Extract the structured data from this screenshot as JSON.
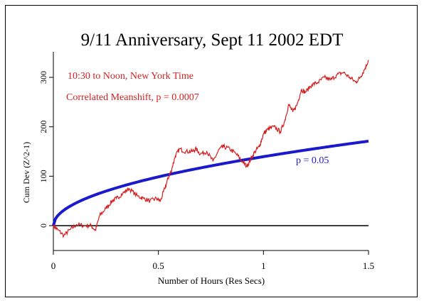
{
  "chart_data": {
    "type": "line",
    "title": "9/11 Anniversary, Sept 11 2002 EDT",
    "xlabel": "Number of Hours (Res Secs)",
    "ylabel": "Cum Dev (Z^2-1)",
    "xlim": [
      0,
      1.5
    ],
    "ylim": [
      -50,
      360
    ],
    "x_ticks": [
      {
        "value": 0,
        "label": "0"
      },
      {
        "value": 0.5,
        "label": "0.5"
      },
      {
        "value": 1,
        "label": "1"
      },
      {
        "value": 1.5,
        "label": "1.5"
      }
    ],
    "y_ticks": [
      {
        "value": 0,
        "label": "0"
      },
      {
        "value": 100,
        "label": "100"
      },
      {
        "value": 200,
        "label": "200"
      },
      {
        "value": 300,
        "label": "300"
      }
    ],
    "grid": false,
    "annotations": [
      {
        "text": "10:30 to Noon, New York Time",
        "color": "#d42020"
      },
      {
        "text": "Correlated Meanshift,  p = 0.0007",
        "color": "#d42020"
      }
    ],
    "reference_line": {
      "label": "p = 0.05",
      "color": "#1a1acc",
      "formula": "1.6449*sqrt(2*x*3600)",
      "x_end": 1.5
    },
    "zero_line": {
      "y": 0,
      "color": "#000000"
    },
    "series": [
      {
        "color": "#d42020",
        "x": [
          0,
          0.02,
          0.05,
          0.08,
          0.11,
          0.15,
          0.18,
          0.2,
          0.22,
          0.25,
          0.28,
          0.3,
          0.33,
          0.36,
          0.4,
          0.43,
          0.46,
          0.49,
          0.51,
          0.53,
          0.55,
          0.56,
          0.58,
          0.6,
          0.63,
          0.66,
          0.68,
          0.7,
          0.73,
          0.76,
          0.79,
          0.81,
          0.84,
          0.87,
          0.9,
          0.92,
          0.94,
          0.96,
          0.98,
          1.0,
          1.02,
          1.05,
          1.08,
          1.1,
          1.12,
          1.14,
          1.16,
          1.18,
          1.2,
          1.23,
          1.26,
          1.29,
          1.32,
          1.35,
          1.38,
          1.41,
          1.44,
          1.46,
          1.48,
          1.5
        ],
        "values": [
          0,
          -8,
          -20,
          -8,
          2,
          0,
          0,
          -10,
          20,
          35,
          50,
          55,
          65,
          75,
          60,
          55,
          50,
          55,
          50,
          75,
          100,
          110,
          140,
          155,
          150,
          150,
          155,
          145,
          150,
          130,
          155,
          160,
          155,
          145,
          130,
          120,
          135,
          150,
          160,
          185,
          195,
          200,
          190,
          210,
          245,
          230,
          245,
          275,
          270,
          285,
          290,
          300,
          295,
          305,
          310,
          300,
          290,
          300,
          315,
          335
        ]
      }
    ]
  }
}
